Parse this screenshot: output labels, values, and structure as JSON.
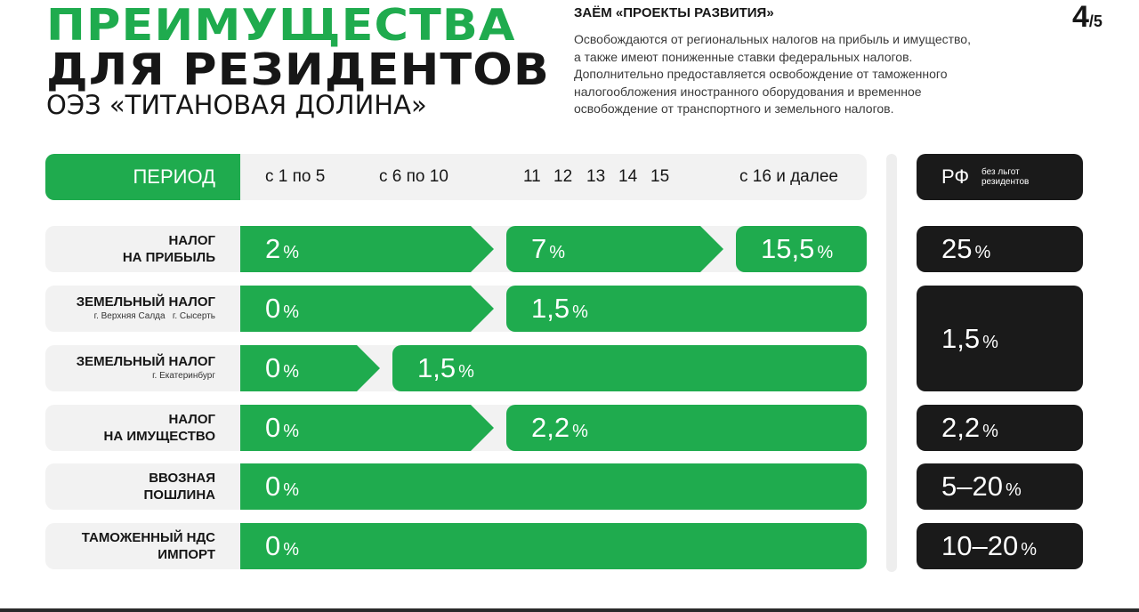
{
  "header": {
    "title_line1": "ПРЕИМУЩЕСТВА",
    "title_line2": "ДЛЯ РЕЗИДЕНТОВ",
    "subtitle": "ОЭЗ «ТИТАНОВАЯ ДОЛИНА»",
    "loan_title": "ЗАЁМ «ПРОЕКТЫ РАЗВИТИЯ»",
    "loan_text": [
      "Освобождаются от региональных налогов на прибыль и имущество,",
      "а также имеют пониженные ставки федеральных налогов.",
      "Дополнительно предоставляется освобождение от таможенного",
      "налогообложения иностранного оборудования и временное",
      "освобождение от транспортного и земельного налогов."
    ],
    "page_current": "4",
    "page_total": "/5"
  },
  "period": {
    "label": "ПЕРИОД",
    "columns": [
      "с 1 по 5",
      "с 6 по 10",
      "11",
      "12",
      "13",
      "14",
      "15",
      "с 16 и далее"
    ]
  },
  "rf_header": {
    "label": "РФ",
    "note": "без льгот резидентов"
  },
  "pct": "%",
  "rows": [
    {
      "label": "НАЛОГ\nНА ПРИБЫЛЬ",
      "sub": "",
      "segments": [
        "2",
        "7",
        "15,5"
      ],
      "rf": "25"
    },
    {
      "label": "ЗЕМЕЛЬНЫЙ НАЛОГ",
      "sub": "г. Верхняя Салда   г. Сысерть",
      "segments": [
        "0",
        "1,5"
      ],
      "rf": "1,5"
    },
    {
      "label": "ЗЕМЕЛЬНЫЙ НАЛОГ",
      "sub": "г. Екатеринбург",
      "segments": [
        "0",
        "1,5"
      ],
      "rf": ""
    },
    {
      "label": "НАЛОГ\nНА ИМУЩЕСТВО",
      "sub": "",
      "segments": [
        "0",
        "2,2"
      ],
      "rf": "2,2"
    },
    {
      "label": "ВВОЗНАЯ\nПОШЛИНА",
      "sub": "",
      "segments": [
        "0"
      ],
      "rf": "5–20"
    },
    {
      "label": "ТАМОЖЕННЫЙ НДС\nИМПОРТ",
      "sub": "",
      "segments": [
        "0"
      ],
      "rf": "10–20"
    }
  ]
}
